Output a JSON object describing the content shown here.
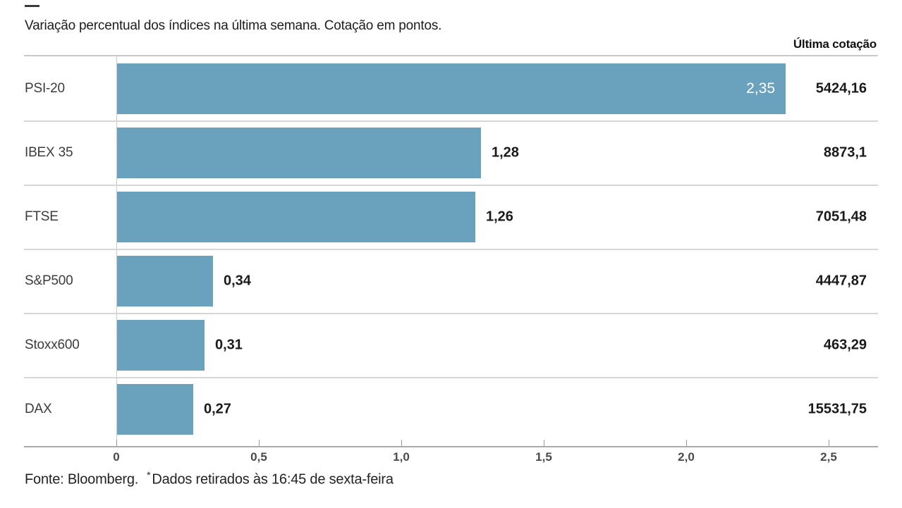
{
  "title": "Variação percentual dos índices na última semana. Cotação em pontos.",
  "column_header": "Última cotação",
  "footer": {
    "source": "Fonte: Bloomberg.",
    "note_marker": "*",
    "note": "Dados retirados às 16:45 de sexta-feira"
  },
  "colors": {
    "bar": "#6aa1bc",
    "separator": "#d6d6d6",
    "axis": "#ababab",
    "value_text": "#1a1a1a",
    "inside_value_text": "#ffffff"
  },
  "chart_data": {
    "type": "bar",
    "orientation": "horizontal",
    "title": "Variação percentual dos índices na última semana. Cotação em pontos.",
    "categories": [
      "PSI-20",
      "IBEX 35",
      "FTSE",
      "S&P500",
      "Stoxx600",
      "DAX"
    ],
    "series": [
      {
        "name": "Variação percentual na última semana (%)",
        "values": [
          2.35,
          1.28,
          1.26,
          0.34,
          0.31,
          0.27
        ],
        "labels": [
          "2,35",
          "1,28",
          "1,26",
          "0,34",
          "0,31",
          "0,27"
        ]
      },
      {
        "name": "Última cotação (pontos)",
        "values": [
          5424.16,
          8873.1,
          7051.48,
          4447.87,
          463.29,
          15531.75
        ],
        "labels": [
          "5424,16",
          "8873,1",
          "7051,48",
          "4447,87",
          "463,29",
          "15531,75"
        ]
      }
    ],
    "value_label_inside": [
      true,
      false,
      false,
      false,
      false,
      false
    ],
    "x_ticks": [
      {
        "value": 0,
        "label": "0"
      },
      {
        "value": 0.5,
        "label": "0,5"
      },
      {
        "value": 1.0,
        "label": "1,0"
      },
      {
        "value": 1.5,
        "label": "1,5"
      },
      {
        "value": 2.0,
        "label": "2,0"
      },
      {
        "value": 2.5,
        "label": "2,5"
      }
    ],
    "xlim": [
      0,
      2.67
    ],
    "grid": false,
    "legend": false
  }
}
